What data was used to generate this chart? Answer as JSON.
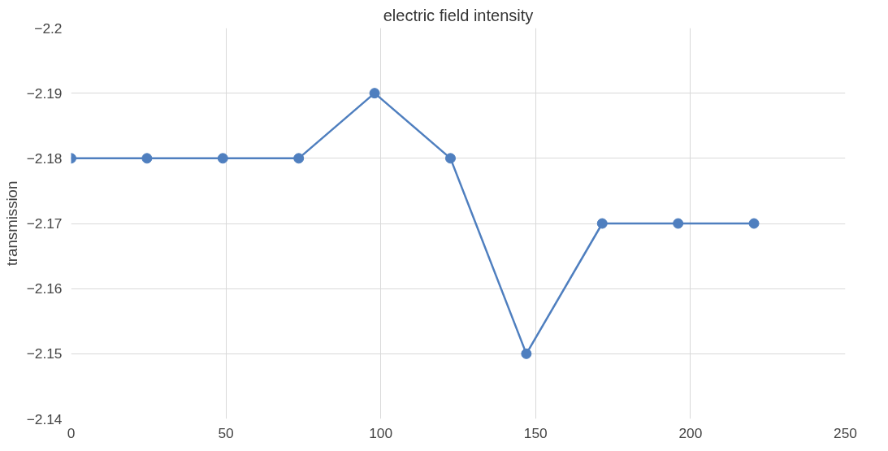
{
  "chart_data": {
    "type": "line",
    "title": "electric field intensity",
    "ylabel": "transmission",
    "x": [
      0,
      24.5,
      49,
      73.5,
      98,
      122.5,
      147,
      171.5,
      196,
      220.5
    ],
    "series": [
      {
        "color": "#4f7fbf",
        "values": [
          -2.18,
          -2.18,
          -2.18,
          -2.18,
          -2.19,
          -2.18,
          -2.15,
          -2.17,
          -2.17,
          -2.17
        ]
      }
    ],
    "xlim": [
      0,
      250
    ],
    "xticks": [
      0,
      50,
      100,
      150,
      200,
      250
    ],
    "ylim": [
      -2.14,
      -2.2
    ],
    "yticks": [
      -2.2,
      -2.19,
      -2.18,
      -2.17,
      -2.16,
      -2.15,
      -2.14
    ],
    "grid": true,
    "marker": "circle",
    "line_style": "solid"
  }
}
